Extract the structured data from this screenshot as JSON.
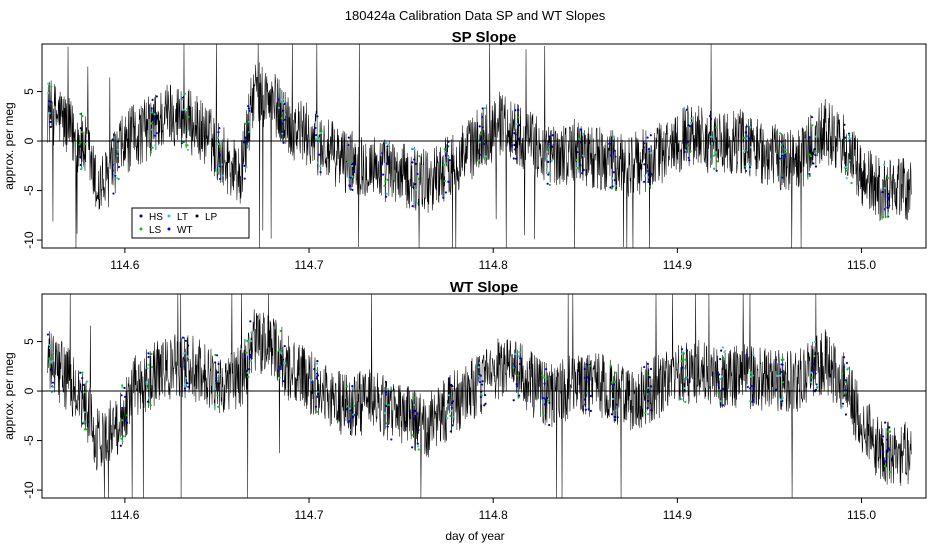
{
  "figure": {
    "suptitle": "180424a   Calibration Data SP and WT Slopes",
    "xlabel": "day of year"
  },
  "legend": {
    "entries": [
      {
        "label": "HS",
        "color": "#00008B"
      },
      {
        "label": "LS",
        "color": "#00CC00"
      },
      {
        "label": "LT",
        "color": "#33CCCC"
      },
      {
        "label": "WT",
        "color": "#0000FF"
      },
      {
        "label": "LP",
        "color": "#000000"
      }
    ]
  },
  "chart_data": [
    {
      "type": "line",
      "title": "SP Slope",
      "xlabel": "",
      "ylabel": "approx. per meg",
      "xlim": [
        114.555,
        115.035
      ],
      "ylim": [
        -10.8,
        9.8
      ],
      "xticks": [
        114.6,
        114.7,
        114.8,
        114.9,
        115.0
      ],
      "xtick_labels": [
        "114.6",
        "114.7",
        "114.8",
        "114.9",
        "115.0"
      ],
      "yticks": [
        -10,
        -5,
        0,
        5
      ],
      "ytick_labels": [
        "-10",
        "-5",
        "0",
        "5"
      ],
      "hline": 0,
      "x_start": 114.558,
      "x_end": 115.027,
      "envelope": {
        "x": [
          114.558,
          114.565,
          114.572,
          114.58,
          114.585,
          114.59,
          114.597,
          114.605,
          114.615,
          114.625,
          114.635,
          114.645,
          114.655,
          114.663,
          114.67,
          114.68,
          114.69,
          114.7,
          114.71,
          114.72,
          114.735,
          114.75,
          114.765,
          114.78,
          114.795,
          114.805,
          114.815,
          114.83,
          114.845,
          114.86,
          114.875,
          114.89,
          114.9,
          114.91,
          114.92,
          114.935,
          114.95,
          114.965,
          114.98,
          114.99,
          115.0,
          115.01,
          115.02,
          115.027
        ],
        "y": [
          3.0,
          2.5,
          0.5,
          -1.0,
          -5.0,
          -4.0,
          -1.0,
          0.5,
          1.5,
          3.0,
          2.0,
          0.5,
          -2.0,
          -3.5,
          5.0,
          4.0,
          1.5,
          0.5,
          -1.0,
          -2.0,
          -2.5,
          -3.5,
          -4.0,
          -2.0,
          0.5,
          2.0,
          0.5,
          -1.5,
          -1.0,
          -2.0,
          -2.5,
          -1.5,
          0.0,
          1.0,
          -0.5,
          0.0,
          -1.5,
          -2.0,
          1.0,
          -0.5,
          -3.5,
          -5.0,
          -4.5,
          -5.5
        ]
      },
      "noise_amplitude": 3.3
    },
    {
      "type": "line",
      "title": "WT Slope",
      "xlabel": "day of year",
      "ylabel": "approx. per meg",
      "xlim": [
        114.555,
        115.035
      ],
      "ylim": [
        -10.8,
        9.8
      ],
      "xticks": [
        114.6,
        114.7,
        114.8,
        114.9,
        115.0
      ],
      "xtick_labels": [
        "114.6",
        "114.7",
        "114.8",
        "114.9",
        "115.0"
      ],
      "yticks": [
        -10,
        -5,
        0,
        5
      ],
      "ytick_labels": [
        "-10",
        "-5",
        "0",
        "5"
      ],
      "hline": 0,
      "x_start": 114.558,
      "x_end": 115.027,
      "envelope": {
        "x": [
          114.558,
          114.565,
          114.572,
          114.58,
          114.585,
          114.59,
          114.597,
          114.605,
          114.615,
          114.625,
          114.635,
          114.645,
          114.655,
          114.663,
          114.67,
          114.68,
          114.69,
          114.7,
          114.71,
          114.72,
          114.735,
          114.75,
          114.765,
          114.78,
          114.795,
          114.805,
          114.815,
          114.83,
          114.845,
          114.86,
          114.875,
          114.89,
          114.9,
          114.91,
          114.92,
          114.935,
          114.95,
          114.965,
          114.98,
          114.99,
          115.0,
          115.01,
          115.02,
          115.027
        ],
        "y": [
          3.0,
          2.0,
          0.5,
          -2.0,
          -5.0,
          -4.5,
          -3.0,
          0.5,
          1.5,
          2.5,
          2.5,
          1.5,
          0.5,
          1.5,
          5.0,
          4.5,
          2.0,
          1.0,
          -0.5,
          -1.5,
          -1.0,
          -2.5,
          -3.5,
          -1.0,
          1.0,
          2.5,
          1.5,
          -0.5,
          0.5,
          0.5,
          -1.0,
          0.5,
          1.5,
          2.0,
          1.5,
          1.5,
          1.0,
          1.0,
          3.0,
          1.0,
          -3.0,
          -6.0,
          -6.5,
          -6.0
        ]
      },
      "noise_amplitude": 3.3
    }
  ]
}
